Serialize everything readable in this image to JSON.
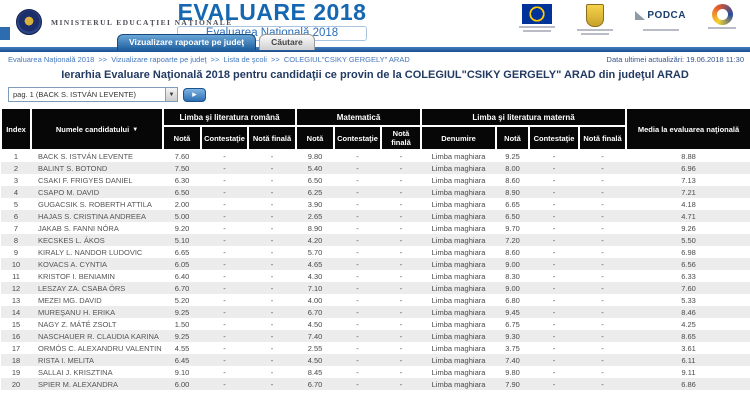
{
  "header": {
    "ministry_label": "MINISTERUL EDUCAŢIEI NAŢIONALE",
    "main_title": "EVALUARE 2018",
    "subtitle": "Evaluarea Naţională 2018",
    "tabs": [
      {
        "label": "Vizualizare rapoarte pe judeţ",
        "active": true
      },
      {
        "label": "Căutare",
        "active": false
      }
    ],
    "logos": {
      "podca_label": "PODCA"
    },
    "last_update": "Data ultimei actualizări: 19.06.2018 11:30"
  },
  "breadcrumb": {
    "separator": ">>",
    "items": [
      "Evaluarea Naţională 2018",
      "Vizualizare rapoarte pe judeţ",
      "Lista de şcoli",
      "COLEGIUL\"CSIKY GERGELY\" ARAD"
    ]
  },
  "page_title": "Ierarhia Evaluare Naţională 2018 pentru candidaţii ce provin de la COLEGIUL\"CSIKY GERGELY\" ARAD din judeţul ARAD",
  "pagination": {
    "selected": "pag. 1 (BACK S. ISTVÁN LEVENTE)",
    "dropdown_icon": "▼",
    "go_icon": "▸"
  },
  "table": {
    "headers": {
      "index": "Index",
      "name": "Numele candidatului",
      "sort_icon": "▼",
      "romanian_group": "Limba şi literatura română",
      "math_group": "Matematică",
      "maternal_group": "Limba şi literatura maternă",
      "media": "Media la evaluarea naţională",
      "nota": "Notă",
      "contestatie": "Contestaţie",
      "nota_finala": "Notă finală",
      "denumire": "Denumire"
    },
    "col_keys": [
      "index",
      "name",
      "ro-nota",
      "ro-contestatie",
      "ro-nota-finala",
      "mat-nota",
      "mat-contestatie",
      "mat-nota-finala",
      "materna-denumire",
      "materna-nota",
      "materna-contestatie",
      "materna-nota-finala",
      "media"
    ],
    "rows": [
      [
        "1",
        "BACK S. ISTVÁN LEVENTE",
        "7.60",
        "-",
        "-",
        "9.80",
        "-",
        "-",
        "Limba maghiara",
        "9.25",
        "-",
        "-",
        "8.88"
      ],
      [
        "2",
        "BALINT S. BOTOND",
        "7.50",
        "-",
        "-",
        "5.40",
        "-",
        "-",
        "Limba maghiara",
        "8.00",
        "-",
        "-",
        "6.96"
      ],
      [
        "3",
        "CSAKI F. FRIGYES DANIEL",
        "6.30",
        "-",
        "-",
        "6.50",
        "-",
        "-",
        "Limba maghiara",
        "8.60",
        "-",
        "-",
        "7.13"
      ],
      [
        "4",
        "CSAPO M. DAVID",
        "6.50",
        "-",
        "-",
        "6.25",
        "-",
        "-",
        "Limba maghiara",
        "8.90",
        "-",
        "-",
        "7.21"
      ],
      [
        "5",
        "GUGACSIK S. ROBERTH ATTILA",
        "2.00",
        "-",
        "-",
        "3.90",
        "-",
        "-",
        "Limba maghiara",
        "6.65",
        "-",
        "-",
        "4.18"
      ],
      [
        "6",
        "HAJAS S. CRISTINA ANDREEA",
        "5.00",
        "-",
        "-",
        "2.65",
        "-",
        "-",
        "Limba maghiara",
        "6.50",
        "-",
        "-",
        "4.71"
      ],
      [
        "7",
        "JAKAB S. FANNI NÓRA",
        "9.20",
        "-",
        "-",
        "8.90",
        "-",
        "-",
        "Limba maghiara",
        "9.70",
        "-",
        "-",
        "9.26"
      ],
      [
        "8",
        "KECSKES L. ÁKOS",
        "5.10",
        "-",
        "-",
        "4.20",
        "-",
        "-",
        "Limba maghiara",
        "7.20",
        "-",
        "-",
        "5.50"
      ],
      [
        "9",
        "KIRALY L. NANDOR LUDOVIC",
        "6.65",
        "-",
        "-",
        "5.70",
        "-",
        "-",
        "Limba maghiara",
        "8.60",
        "-",
        "-",
        "6.98"
      ],
      [
        "10",
        "KOVACS A. CYNTIA",
        "6.05",
        "-",
        "-",
        "4.65",
        "-",
        "-",
        "Limba maghiara",
        "9.00",
        "-",
        "-",
        "6.56"
      ],
      [
        "11",
        "KRISTOF I. BENIAMIN",
        "6.40",
        "-",
        "-",
        "4.30",
        "-",
        "-",
        "Limba maghiara",
        "8.30",
        "-",
        "-",
        "6.33"
      ],
      [
        "12",
        "LESZAY ZA. CSABA ÖRS",
        "6.70",
        "-",
        "-",
        "7.10",
        "-",
        "-",
        "Limba maghiara",
        "9.00",
        "-",
        "-",
        "7.60"
      ],
      [
        "13",
        "MEZEI MG. DAVID",
        "5.20",
        "-",
        "-",
        "4.00",
        "-",
        "-",
        "Limba maghiara",
        "6.80",
        "-",
        "-",
        "5.33"
      ],
      [
        "14",
        "MUREŞANU H. ERIKA",
        "9.25",
        "-",
        "-",
        "6.70",
        "-",
        "-",
        "Limba maghiara",
        "9.45",
        "-",
        "-",
        "8.46"
      ],
      [
        "15",
        "NAGY Z. MÁTÉ ZSOLT",
        "1.50",
        "-",
        "-",
        "4.50",
        "-",
        "-",
        "Limba maghiara",
        "6.75",
        "-",
        "-",
        "4.25"
      ],
      [
        "16",
        "NASCHAUER R. CLAUDIA KARINA",
        "9.25",
        "-",
        "-",
        "7.40",
        "-",
        "-",
        "Limba maghiara",
        "9.30",
        "-",
        "-",
        "8.65"
      ],
      [
        "17",
        "ORMÓS C. ALEXANDRU VALENTIN",
        "4.55",
        "-",
        "-",
        "2.55",
        "-",
        "-",
        "Limba maghiara",
        "3.75",
        "-",
        "-",
        "3.61"
      ],
      [
        "18",
        "RISTA I. MELITA",
        "6.45",
        "-",
        "-",
        "4.50",
        "-",
        "-",
        "Limba maghiara",
        "7.40",
        "-",
        "-",
        "6.11"
      ],
      [
        "19",
        "SALLAI J. KRISZTINA",
        "9.10",
        "-",
        "-",
        "8.45",
        "-",
        "-",
        "Limba maghiara",
        "9.80",
        "-",
        "-",
        "9.11"
      ],
      [
        "20",
        "SPIER M. ALEXANDRA",
        "6.00",
        "-",
        "-",
        "6.70",
        "-",
        "-",
        "Limba maghiara",
        "7.90",
        "-",
        "-",
        "6.86"
      ]
    ]
  }
}
